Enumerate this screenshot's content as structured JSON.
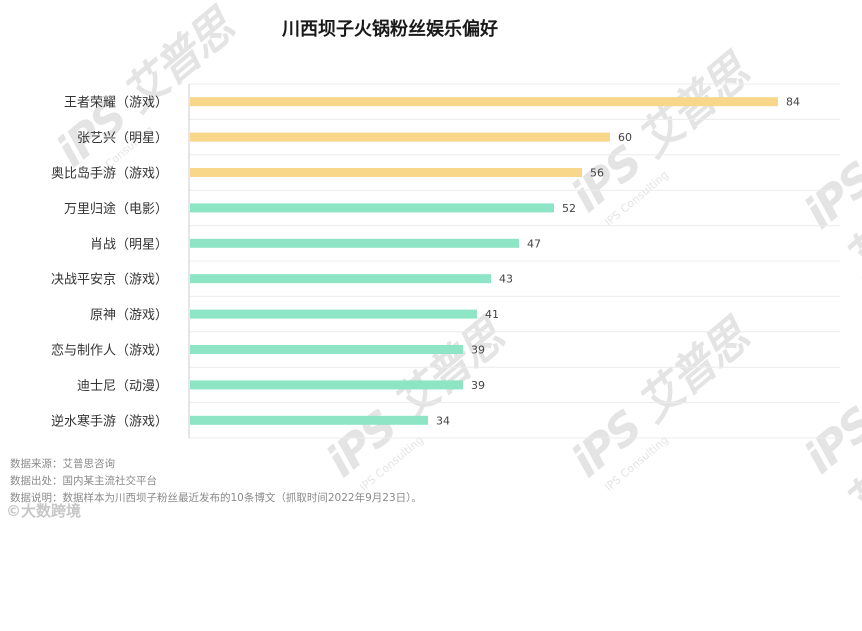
{
  "title": "川西坝子火锅粉丝娱乐偏好",
  "chart_data": {
    "type": "bar",
    "orientation": "horizontal",
    "title": "川西坝子火锅粉丝娱乐偏好",
    "xlim": [
      0,
      100
    ],
    "categories": [
      "王者荣耀（游戏）",
      "张艺兴（明星）",
      "奥比岛手游（游戏）",
      "万里归途（电影）",
      "肖战（明星）",
      "决战平安京（游戏）",
      "原神（游戏）",
      "恋与制作人（游戏）",
      "迪士尼（动漫）",
      "逆水寒手游（游戏）"
    ],
    "values": [
      84,
      60,
      56,
      52,
      47,
      43,
      41,
      39,
      39,
      34
    ],
    "colors": [
      "#f8d68a",
      "#f8d68a",
      "#f8d68a",
      "#8de5c6",
      "#8de5c6",
      "#8de5c6",
      "#8de5c6",
      "#8de5c6",
      "#8de5c6",
      "#8de5c6"
    ],
    "grid": true
  },
  "notes": {
    "source": "数据来源：艾普思咨询",
    "origin": "数据出处：国内某主流社交平台",
    "explain": "数据说明：数据样本为川西坝子粉丝最近发布的10条博文（抓取时间2022年9月23日）。"
  },
  "watermark": {
    "logo": "iPS 艾普思",
    "sub": "IPS Consulting"
  },
  "logo_bottom": "©大数跨境"
}
